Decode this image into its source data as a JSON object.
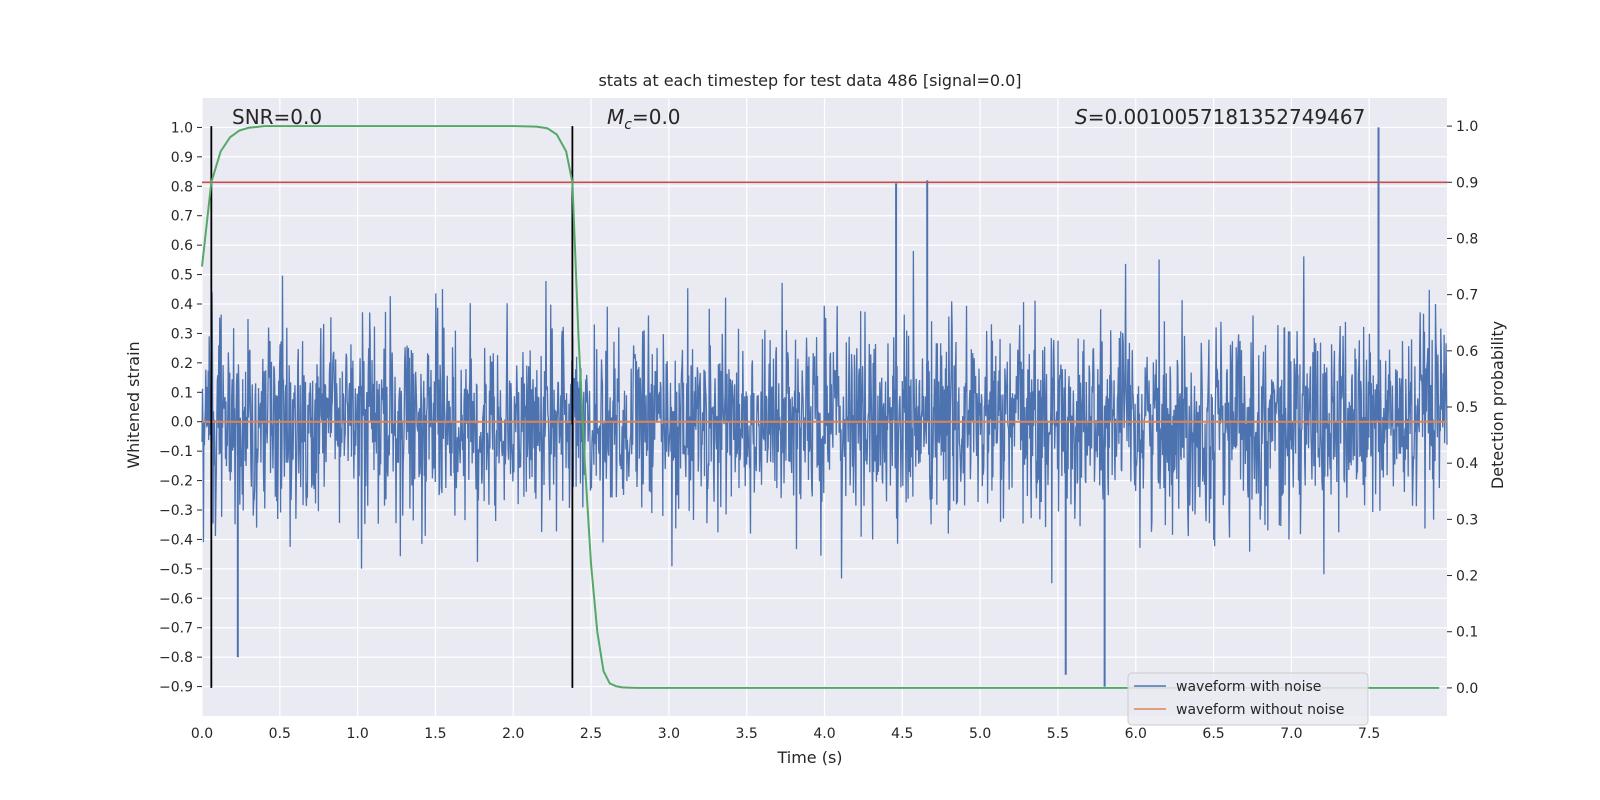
{
  "chart_data": {
    "type": "line",
    "title": "stats at each timestep for test data 486 [signal=0.0]",
    "xlabel": "Time (s)",
    "ylabel": "Whitened strain",
    "y2label": "Detection probability",
    "xlim": [
      0.0,
      8.0
    ],
    "ylim": [
      -1.0,
      1.1
    ],
    "y2lim": [
      -0.05,
      1.05
    ],
    "grid": true,
    "legend_position": "lower-right",
    "x_ticks": [
      "0.0",
      "0.5",
      "1.0",
      "1.5",
      "2.0",
      "2.5",
      "3.0",
      "3.5",
      "4.0",
      "4.5",
      "5.0",
      "5.5",
      "6.0",
      "6.5",
      "7.0",
      "7.5"
    ],
    "y_ticks": [
      "1.0",
      "0.9",
      "0.8",
      "0.7",
      "0.6",
      "0.5",
      "0.4",
      "0.3",
      "0.2",
      "0.1",
      "0.0",
      "−0.1",
      "−0.2",
      "−0.3",
      "−0.4",
      "−0.5",
      "−0.6",
      "−0.7",
      "−0.8",
      "−0.9"
    ],
    "y2_ticks": [
      "1.0",
      "0.9",
      "0.8",
      "0.7",
      "0.6",
      "0.5",
      "0.4",
      "0.3",
      "0.2",
      "0.1",
      "0.0"
    ],
    "annotations": {
      "snr": "SNR=0.0",
      "mc_symbol": "M",
      "mc_sub": "c",
      "mc_value": "=0.0",
      "s_symbol": "S",
      "s_value": "=0.0010057181352749467"
    },
    "vertical_lines_x": [
      0.06,
      2.38
    ],
    "threshold_y2": 0.9,
    "noise_envelope": {
      "description_free": true,
      "typical_abs_amplitude": 0.3,
      "max_value": 1.0,
      "min_value": -0.9
    },
    "series": [
      {
        "name": "waveform with noise",
        "color": "#4c72b0",
        "values_axis": "left"
      },
      {
        "name": "waveform without noise",
        "color": "#dd8452",
        "values_axis": "left",
        "constant_value": 0.0
      },
      {
        "color": "#55a868",
        "values_axis": "right",
        "x": [
          0.0,
          0.06,
          0.12,
          0.18,
          0.24,
          0.3,
          0.4,
          0.6,
          1.0,
          1.5,
          2.0,
          2.15,
          2.22,
          2.28,
          2.34,
          2.38,
          2.42,
          2.46,
          2.5,
          2.54,
          2.58,
          2.62,
          2.66,
          2.7,
          2.8,
          3.5,
          5.0,
          7.0,
          7.95
        ],
        "y": [
          0.75,
          0.9,
          0.955,
          0.98,
          0.992,
          0.997,
          1.0,
          1.0,
          1.0,
          1.0,
          1.0,
          0.999,
          0.996,
          0.985,
          0.955,
          0.9,
          0.62,
          0.4,
          0.22,
          0.1,
          0.03,
          0.008,
          0.003,
          0.001,
          0.0,
          0.0,
          0.0,
          0.0,
          0.0
        ]
      }
    ]
  },
  "colors": {
    "background": "#eaeaf2",
    "grid": "#ffffff",
    "noise": "#4c72b0",
    "clean": "#dd8452",
    "probability": "#55a868",
    "threshold": "#c44e52",
    "vline": "#000000"
  }
}
